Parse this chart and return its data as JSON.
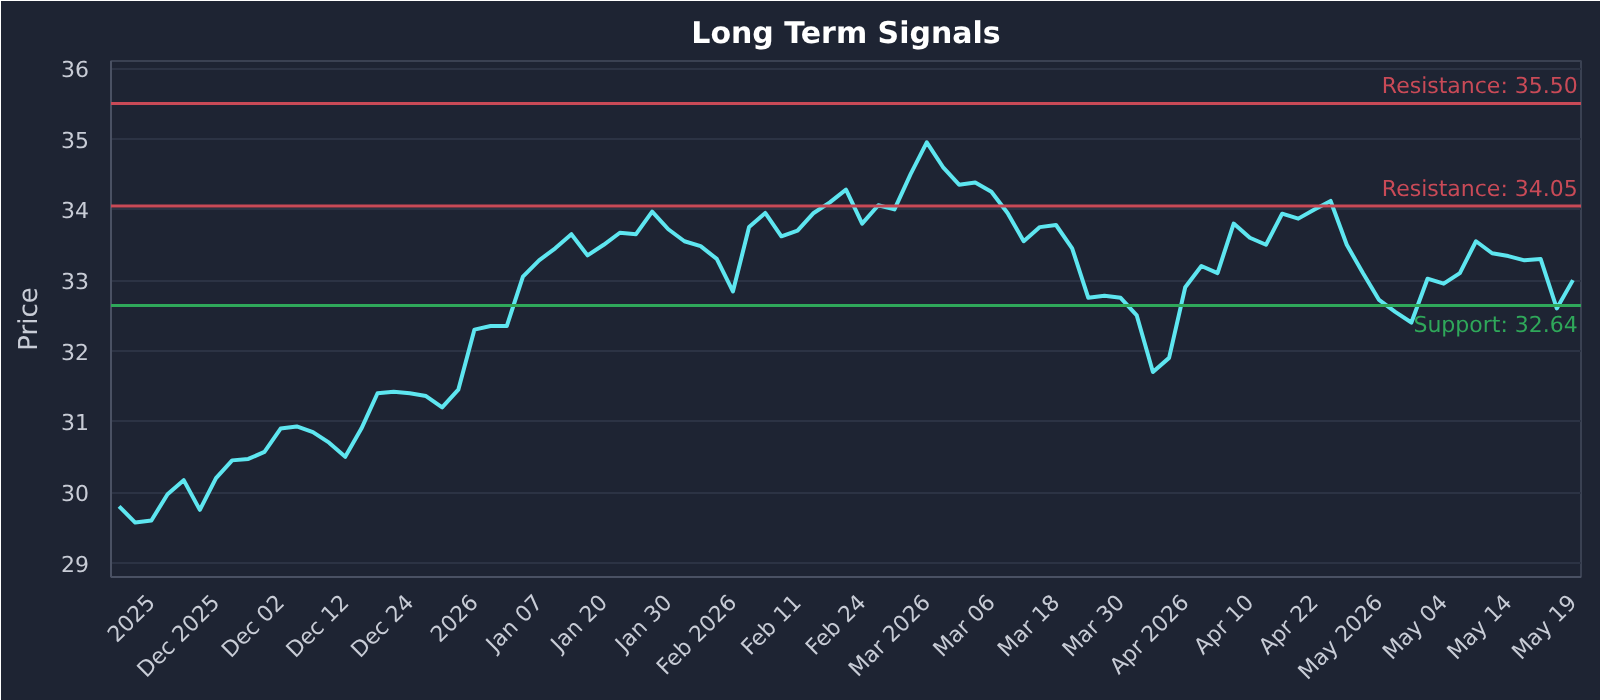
{
  "chart_data": {
    "type": "line",
    "title": "Long Term Signals",
    "ylabel": "Price",
    "categories": [
      null,
      null,
      "2025",
      null,
      null,
      null,
      "Dec 2025",
      null,
      null,
      null,
      "Dec 02",
      null,
      null,
      null,
      "Dec 12",
      null,
      null,
      null,
      "Dec 24",
      null,
      null,
      null,
      "2026",
      null,
      null,
      null,
      "Jan 07",
      null,
      null,
      null,
      "Jan 20",
      null,
      null,
      null,
      "Jan 30",
      null,
      null,
      null,
      "Feb 2026",
      null,
      null,
      null,
      "Feb 11",
      null,
      null,
      null,
      "Feb 24",
      null,
      null,
      null,
      "Mar 2026",
      null,
      null,
      null,
      "Mar 06",
      null,
      null,
      null,
      "Mar 18",
      null,
      null,
      null,
      "Mar 30",
      null,
      null,
      null,
      "Apr 2026",
      null,
      null,
      null,
      "Apr 10",
      null,
      null,
      null,
      "Apr 22",
      null,
      null,
      null,
      "May 2026",
      null,
      null,
      null,
      "May 04",
      null,
      null,
      null,
      "May 14",
      null,
      null,
      null,
      "May 19"
    ],
    "series": [
      {
        "color": "#5ee6f0",
        "values": [
          29.8,
          29.57,
          29.6,
          29.97,
          30.17,
          29.75,
          30.2,
          30.45,
          30.47,
          30.57,
          30.9,
          30.93,
          30.85,
          30.7,
          30.5,
          30.9,
          31.4,
          31.42,
          31.4,
          31.36,
          31.2,
          31.45,
          32.3,
          32.35,
          32.35,
          33.05,
          33.28,
          33.45,
          33.65,
          33.35,
          33.5,
          33.67,
          33.65,
          33.97,
          33.72,
          33.55,
          33.48,
          33.3,
          32.84,
          33.75,
          33.95,
          33.62,
          33.7,
          33.95,
          34.1,
          34.28,
          33.8,
          34.06,
          34.0,
          34.5,
          34.95,
          34.6,
          34.35,
          34.38,
          34.25,
          33.95,
          33.55,
          33.75,
          33.78,
          33.45,
          32.75,
          32.78,
          32.75,
          32.5,
          31.7,
          31.9,
          32.9,
          33.2,
          33.1,
          33.8,
          33.6,
          33.5,
          33.94,
          33.87,
          34.0,
          34.12,
          33.5,
          33.1,
          32.72,
          32.55,
          32.4,
          33.02,
          32.95,
          33.1,
          33.55,
          33.38,
          33.34,
          33.28,
          33.3,
          32.6,
          33.0
        ]
      }
    ],
    "ylim": [
      28.8,
      36.1
    ],
    "yticks": [
      29,
      30,
      31,
      32,
      33,
      34,
      35,
      36
    ],
    "ref_lines": [
      {
        "axis": "y",
        "value": 35.5,
        "label": "Resistance: 35.50",
        "color": "#c94a57"
      },
      {
        "axis": "y",
        "value": 34.05,
        "label": "Resistance: 34.05",
        "color": "#c94a57"
      },
      {
        "axis": "y",
        "value": 32.64,
        "label": "Support: 32.64",
        "color": "#2fa85a"
      }
    ],
    "grid": "y",
    "marker": "none",
    "line_style": "solid"
  }
}
